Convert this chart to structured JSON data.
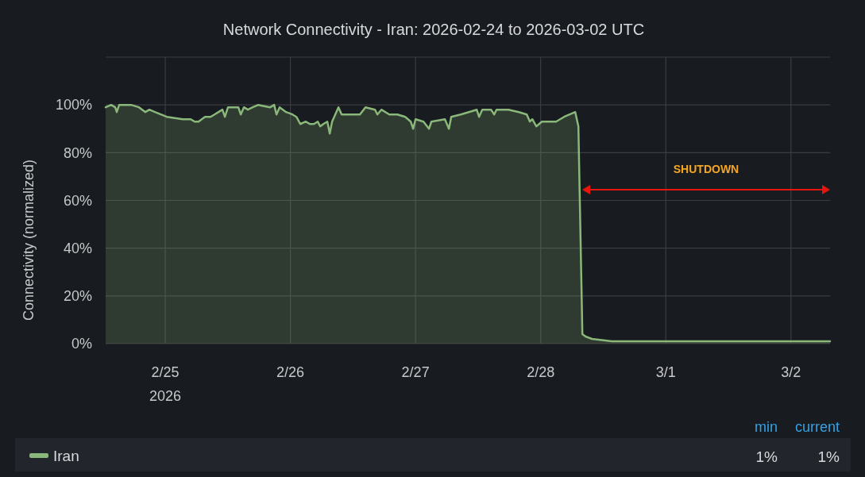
{
  "chart_data": {
    "type": "area",
    "title": "Network Connectivity - Iran: 2026-02-24 to 2026-03-02 UTC",
    "ylabel": "Connectivity (normalized)",
    "xlim": [
      "2026-02-24T12:34",
      "2026-03-02T07:30"
    ],
    "xticks": [
      {
        "value": "2026-02-25",
        "label": "2/25\n2026"
      },
      {
        "value": "2026-02-26",
        "label": "2/26"
      },
      {
        "value": "2026-02-27",
        "label": "2/27"
      },
      {
        "value": "2026-02-28",
        "label": "2/28"
      },
      {
        "value": "2026-03-01",
        "label": "3/1"
      },
      {
        "value": "2026-03-02",
        "label": "3/2"
      }
    ],
    "ylim": [
      0,
      120
    ],
    "yticks": [
      {
        "value": 0,
        "label": "0%"
      },
      {
        "value": 20,
        "label": "20%"
      },
      {
        "value": 40,
        "label": "40%"
      },
      {
        "value": 60,
        "label": "60%"
      },
      {
        "value": 80,
        "label": "80%"
      },
      {
        "value": 100,
        "label": "100%"
      },
      {
        "value": 120,
        "label": null
      }
    ],
    "grid": true,
    "legend": "bottom",
    "series": [
      {
        "name": "Iran",
        "color": "#8ab87a",
        "x": [
          "2026-02-24T12:34",
          "2026-02-24T13:38",
          "2026-02-24T14:24",
          "2026-02-24T14:42",
          "2026-02-24T15:10",
          "2026-02-24T17:27",
          "2026-02-24T18:58",
          "2026-02-24T20:11",
          "2026-02-24T20:57",
          "2026-02-24T22:01",
          "2026-02-25T00:18",
          "2026-02-25T03:21",
          "2026-02-25T04:53",
          "2026-02-25T05:38",
          "2026-02-25T06:24",
          "2026-02-25T07:37",
          "2026-02-25T08:41",
          "2026-02-25T09:27",
          "2026-02-25T10:13",
          "2026-02-25T10:58",
          "2026-02-25T11:26",
          "2026-02-25T12:02",
          "2026-02-25T13:16",
          "2026-02-25T14:01",
          "2026-02-25T14:29",
          "2026-02-25T15:05",
          "2026-02-25T15:51",
          "2026-02-25T16:46",
          "2026-02-25T17:50",
          "2026-02-25T20:07",
          "2026-02-25T20:53",
          "2026-02-25T21:20",
          "2026-02-25T21:56",
          "2026-02-25T23:10",
          "2026-02-26T00:23",
          "2026-02-26T01:09",
          "2026-02-26T01:54",
          "2026-02-26T02:58",
          "2026-02-26T03:44",
          "2026-02-26T04:30",
          "2026-02-26T05:15",
          "2026-02-26T05:43",
          "2026-02-26T06:19",
          "2026-02-26T07:05",
          "2026-02-26T07:33",
          "2026-02-26T08:00",
          "2026-02-26T09:13",
          "2026-02-26T09:50",
          "2026-02-26T11:21",
          "2026-02-26T13:20",
          "2026-02-26T14:24",
          "2026-02-26T16:14",
          "2026-02-26T16:41",
          "2026-02-26T17:27",
          "2026-02-26T18:58",
          "2026-02-26T20:30",
          "2026-02-26T22:01",
          "2026-02-26T23:05",
          "2026-02-26T23:33",
          "2026-02-27T00:00",
          "2026-02-27T01:31",
          "2026-02-27T02:35",
          "2026-02-27T03:03",
          "2026-02-27T05:38",
          "2026-02-27T06:24",
          "2026-02-27T06:51",
          "2026-02-27T08:41",
          "2026-02-27T11:44",
          "2026-02-27T12:11",
          "2026-02-27T12:48",
          "2026-02-27T14:29",
          "2026-02-27T15:05",
          "2026-02-27T15:32",
          "2026-02-27T17:50",
          "2026-02-27T19:49",
          "2026-02-27T21:20",
          "2026-02-27T21:56",
          "2026-02-27T22:24",
          "2026-02-27T23:10",
          "2026-02-28T00:14",
          "2026-02-28T02:58",
          "2026-02-28T04:30",
          "2026-02-28T06:38",
          "2026-02-28T07:14",
          "2026-02-28T08:00",
          "2026-02-28T08:37",
          "2026-02-28T09:50",
          "2026-02-28T13:38",
          "2026-02-28T18:13",
          "2026-03-01T09:27",
          "2026-03-01T15:32",
          "2026-03-02T00:41",
          "2026-03-02T03:44",
          "2026-03-02T07:30"
        ],
        "values": [
          99,
          100,
          99,
          97,
          100,
          100,
          99,
          97,
          98,
          97,
          95,
          94,
          94,
          93,
          93,
          95,
          95,
          96,
          97,
          98,
          95,
          99,
          99,
          99,
          96,
          99,
          98,
          99,
          100,
          99,
          100,
          96,
          99,
          97,
          96,
          95,
          92,
          93,
          92,
          92,
          93,
          91,
          92,
          93,
          88,
          93,
          99,
          96,
          96,
          96,
          99,
          98,
          96,
          98,
          96,
          96,
          95,
          93,
          90,
          94,
          93,
          90,
          93,
          94,
          90,
          95,
          96,
          98,
          95,
          98,
          98,
          96,
          98,
          98,
          97,
          96,
          93,
          94,
          91,
          93,
          93,
          95,
          97,
          91,
          4,
          3,
          2,
          1,
          1,
          1,
          1,
          1,
          1,
          1
        ]
      }
    ],
    "annotations": [
      "SHUTDOWN",
      "min",
      "current",
      "1%",
      "1%"
    ]
  }
}
